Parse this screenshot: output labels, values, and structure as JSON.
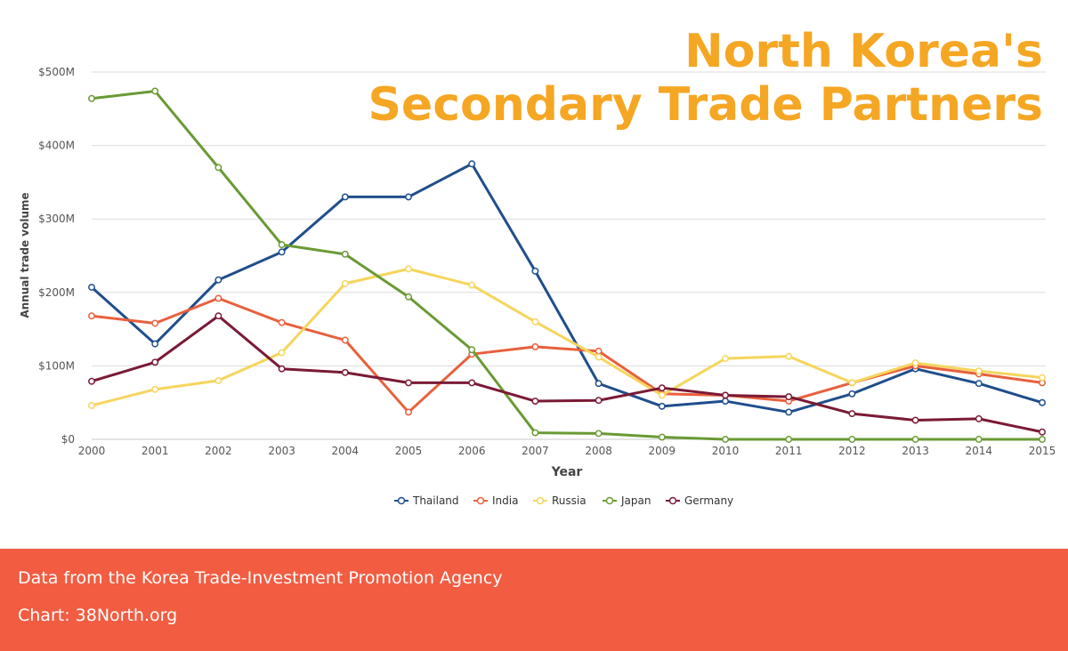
{
  "chart_data": {
    "type": "line",
    "title": [
      "North Korea's",
      "Secondary Trade Partners"
    ],
    "xlabel": "Year",
    "ylabel": "Annual trade volume",
    "x": [
      2000,
      2001,
      2002,
      2003,
      2004,
      2005,
      2006,
      2007,
      2008,
      2009,
      2010,
      2011,
      2012,
      2013,
      2014,
      2015
    ],
    "ylim": [
      0,
      500
    ],
    "yticks": [
      0,
      100,
      200,
      300,
      400,
      500
    ],
    "ytick_labels": [
      "$0",
      "$100M",
      "$200M",
      "$300M",
      "$400M",
      "$500M"
    ],
    "grid": true,
    "legend_position": "bottom",
    "series": [
      {
        "name": "Thailand",
        "color": "#1f4e8c",
        "values": [
          207,
          130,
          217,
          255,
          330,
          330,
          375,
          229,
          76,
          45,
          52,
          37,
          62,
          96,
          76,
          50
        ]
      },
      {
        "name": "India",
        "color": "#e8603c",
        "values": [
          168,
          158,
          192,
          159,
          135,
          37,
          116,
          126,
          120,
          62,
          60,
          52,
          77,
          100,
          89,
          77
        ]
      },
      {
        "name": "Russia",
        "color": "#f6d55c",
        "values": [
          46,
          68,
          80,
          118,
          212,
          232,
          210,
          160,
          112,
          60,
          110,
          113,
          77,
          104,
          93,
          84
        ]
      },
      {
        "name": "Japan",
        "color": "#6a9a34",
        "values": [
          464,
          474,
          370,
          265,
          252,
          194,
          122,
          9,
          8,
          3,
          0,
          0,
          0,
          0,
          0,
          0
        ]
      },
      {
        "name": "Germany",
        "color": "#7a1a35",
        "values": [
          79,
          105,
          168,
          96,
          91,
          77,
          77,
          52,
          53,
          70,
          60,
          58,
          35,
          26,
          28,
          10
        ]
      }
    ]
  },
  "footer": {
    "source": "Data from the Korea Trade-Investment Promotion Agency",
    "credit": "Chart: 38North.org"
  }
}
